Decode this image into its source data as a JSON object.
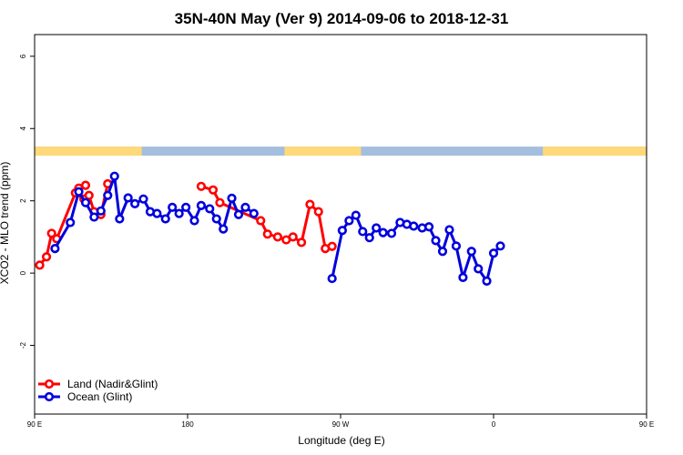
{
  "chart_data": {
    "type": "line",
    "title": "35N-40N May (Ver 9)   2014-09-06 to 2018-12-31",
    "xlabel": "Longitude (deg E)",
    "ylabel": "XCO2 - MLO trend (ppm)",
    "xlim": [
      90,
      450
    ],
    "ylim": [
      -3.9,
      6.6
    ],
    "x_ticks": [
      {
        "value": 90,
        "label": "90 E"
      },
      {
        "value": 180,
        "label": "180"
      },
      {
        "value": 270,
        "label": "90 W"
      },
      {
        "value": 360,
        "label": "0"
      },
      {
        "value": 450,
        "label": "90 E"
      },
      {
        "value": 540,
        "label": "180"
      }
    ],
    "y_ticks": [
      {
        "value": -2,
        "label": "-2"
      },
      {
        "value": 0,
        "label": "0"
      },
      {
        "value": 2,
        "label": "2"
      },
      {
        "value": 4,
        "label": "4"
      },
      {
        "value": 6,
        "label": "6"
      }
    ],
    "legend": {
      "placement": "bottom-left",
      "entries": [
        {
          "label": "Land (Nadir&Glint)",
          "color": "#ff0000"
        },
        {
          "label": "Ocean (Glint)",
          "color": "#0000dd"
        }
      ]
    },
    "land_ocean_strip": {
      "y_range": [
        3.25,
        3.5
      ],
      "land_color": "#ffd97a",
      "ocean_color": "#a4bede",
      "land_intervals": [
        [
          90,
          153
        ],
        [
          237,
          282
        ],
        [
          389,
          450
        ],
        [
          450,
          543
        ]
      ]
    },
    "series": [
      {
        "name": "Land (Nadir&Glint)",
        "color": "#ff0000",
        "segments": [
          [
            [
              93,
              0.22
            ],
            [
              97,
              0.45
            ],
            [
              100,
              1.1
            ],
            [
              103,
              0.95
            ],
            [
              114,
              2.22
            ],
            [
              119,
              2.05
            ],
            [
              122,
              2.15
            ],
            [
              125,
              1.7
            ],
            [
              129,
              1.62
            ],
            [
              133,
              2.47
            ]
          ],
          [
            [
              188,
              2.4
            ],
            [
              195,
              2.3
            ],
            [
              199,
              1.95
            ],
            [
              223,
              1.45
            ],
            [
              227,
              1.08
            ],
            [
              233,
              1.0
            ],
            [
              238,
              0.92
            ],
            [
              242,
              1.0
            ],
            [
              247,
              0.85
            ],
            [
              252,
              1.9
            ],
            [
              257,
              1.7
            ],
            [
              261,
              0.68
            ],
            [
              265,
              0.74
            ]
          ],
          [
            [
              116,
              2.35
            ],
            [
              120,
              2.43
            ]
          ]
        ]
      },
      {
        "name": "Ocean (Glint)",
        "color": "#0000dd",
        "segments": [
          [
            [
              102,
              0.68
            ],
            [
              111,
              1.4
            ],
            [
              116,
              2.25
            ],
            [
              120,
              1.95
            ],
            [
              125,
              1.55
            ],
            [
              129,
              1.72
            ],
            [
              133,
              2.15
            ],
            [
              137,
              2.68
            ],
            [
              140,
              1.5
            ],
            [
              145,
              2.08
            ],
            [
              149,
              1.92
            ],
            [
              154,
              2.05
            ],
            [
              158,
              1.7
            ],
            [
              162,
              1.65
            ],
            [
              167,
              1.5
            ],
            [
              171,
              1.82
            ],
            [
              175,
              1.65
            ],
            [
              179,
              1.82
            ],
            [
              184,
              1.45
            ],
            [
              188,
              1.87
            ],
            [
              193,
              1.78
            ],
            [
              197,
              1.5
            ],
            [
              201,
              1.22
            ],
            [
              206,
              2.07
            ],
            [
              210,
              1.62
            ],
            [
              214,
              1.82
            ],
            [
              219,
              1.65
            ]
          ],
          [
            [
              265,
              -0.15
            ],
            [
              271,
              1.18
            ],
            [
              275,
              1.45
            ],
            [
              279,
              1.6
            ],
            [
              283,
              1.15
            ],
            [
              287,
              0.98
            ],
            [
              291,
              1.25
            ],
            [
              295,
              1.12
            ],
            [
              300,
              1.1
            ],
            [
              305,
              1.4
            ],
            [
              309,
              1.35
            ],
            [
              313,
              1.3
            ],
            [
              318,
              1.25
            ],
            [
              322,
              1.28
            ],
            [
              326,
              0.9
            ],
            [
              330,
              0.6
            ],
            [
              334,
              1.2
            ],
            [
              338,
              0.75
            ],
            [
              342,
              -0.12
            ],
            [
              347,
              0.6
            ],
            [
              351,
              0.12
            ],
            [
              356,
              -0.22
            ],
            [
              360,
              0.55
            ],
            [
              364,
              0.75
            ]
          ]
        ]
      }
    ]
  }
}
